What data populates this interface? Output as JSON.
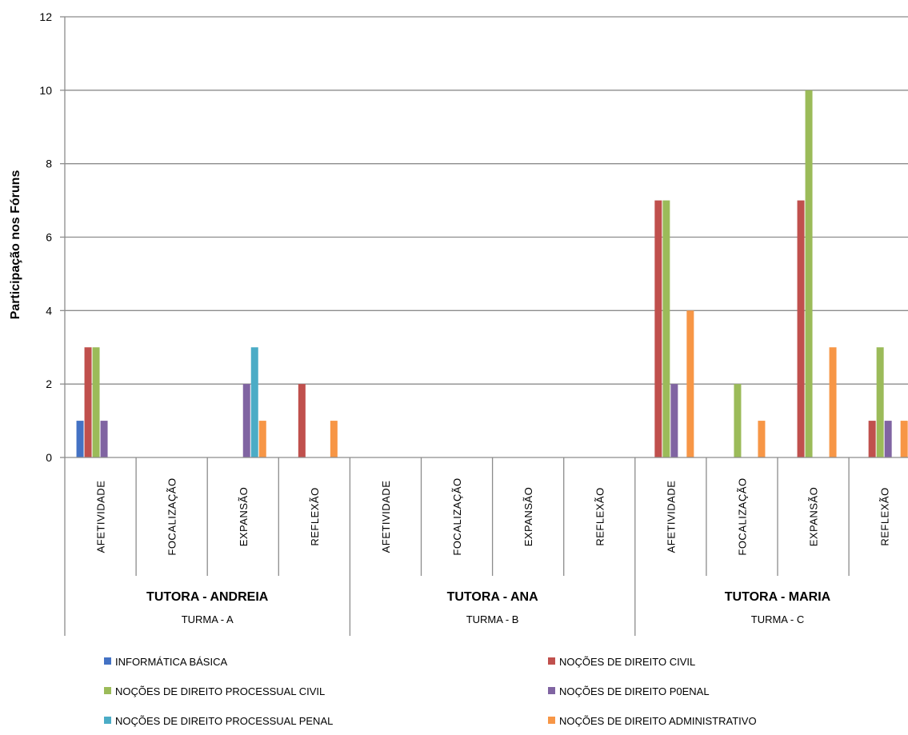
{
  "chart_data": {
    "type": "bar",
    "ylabel": "Participação nos  Fóruns",
    "xlabel": "",
    "ylim": [
      0,
      12
    ],
    "yticks": [
      0,
      2,
      4,
      6,
      8,
      10,
      12
    ],
    "grid": true,
    "legend_position": "bottom",
    "groups": [
      {
        "tutor": "TUTORA - ANDREIA",
        "turma": "TURMA - A"
      },
      {
        "tutor": "TUTORA - ANA",
        "turma": "TURMA - B"
      },
      {
        "tutor": "TUTORA - MARIA",
        "turma": "TURMA - C"
      }
    ],
    "categories": [
      "AFETIVIDADE",
      "FOCALIZAÇÃO",
      "EXPANSÃO",
      "REFLEXÃO",
      "AFETIVIDADE",
      "FOCALIZAÇÃO",
      "EXPANSÃO",
      "REFLEXÃO",
      "AFETIVIDADE",
      "FOCALIZAÇÃO",
      "EXPANSÃO",
      "REFLEXÃO"
    ],
    "series": [
      {
        "name": "INFORMÁTICA BÁSICA",
        "color": "#4472C4",
        "values": [
          1,
          0,
          0,
          0,
          0,
          0,
          0,
          0,
          0,
          0,
          0,
          0
        ]
      },
      {
        "name": "NOÇÕES DE DIREITO CIVIL",
        "color": "#C0504D",
        "values": [
          3,
          0,
          0,
          2,
          0,
          0,
          0,
          0,
          7,
          0,
          7,
          1
        ]
      },
      {
        "name": "NOÇÕES DE DIREITO PROCESSUAL CIVIL",
        "color": "#9BBB59",
        "values": [
          3,
          0,
          0,
          0,
          0,
          0,
          0,
          0,
          7,
          2,
          10,
          3
        ]
      },
      {
        "name": "NOÇÕES DE DIREITO P0ENAL",
        "color": "#8064A2",
        "values": [
          1,
          0,
          2,
          0,
          0,
          0,
          0,
          0,
          2,
          0,
          0,
          1
        ]
      },
      {
        "name": "NOÇÕES DE DIREITO PROCESSUAL PENAL",
        "color": "#4BACC6",
        "values": [
          0,
          0,
          3,
          0,
          0,
          0,
          0,
          0,
          0,
          0,
          0,
          0
        ]
      },
      {
        "name": "NOÇÕES DE DIREITO ADMINISTRATIVO",
        "color": "#F79646",
        "values": [
          0,
          0,
          1,
          1,
          0,
          0,
          0,
          0,
          4,
          1,
          3,
          1
        ]
      }
    ]
  }
}
